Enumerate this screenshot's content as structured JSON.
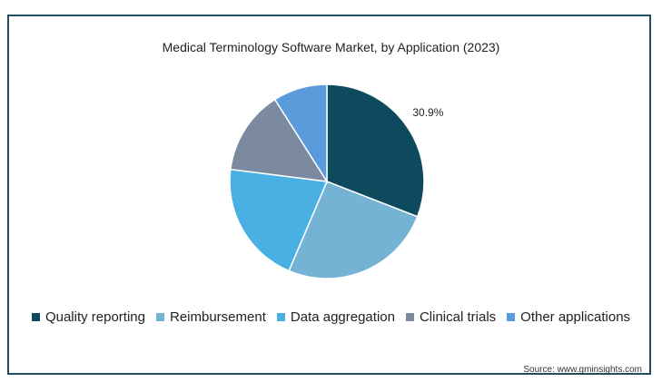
{
  "chart_data": {
    "type": "pie",
    "title": "Medical Terminology Software Market, by Application (2023)",
    "categories": [
      "Quality reporting",
      "Reimbursement",
      "Data aggregation",
      "Clinical trials",
      "Other applications"
    ],
    "values": [
      30.9,
      25.5,
      20.6,
      14.0,
      9.0
    ],
    "colors": [
      "#0d4a5e",
      "#74b3d4",
      "#4aafe3",
      "#7b8a9e",
      "#5a9bdc"
    ],
    "data_labels": [
      "30.9%",
      "",
      "",
      "",
      ""
    ],
    "legend_position": "bottom"
  },
  "source": "Source: www.gminsights.com"
}
